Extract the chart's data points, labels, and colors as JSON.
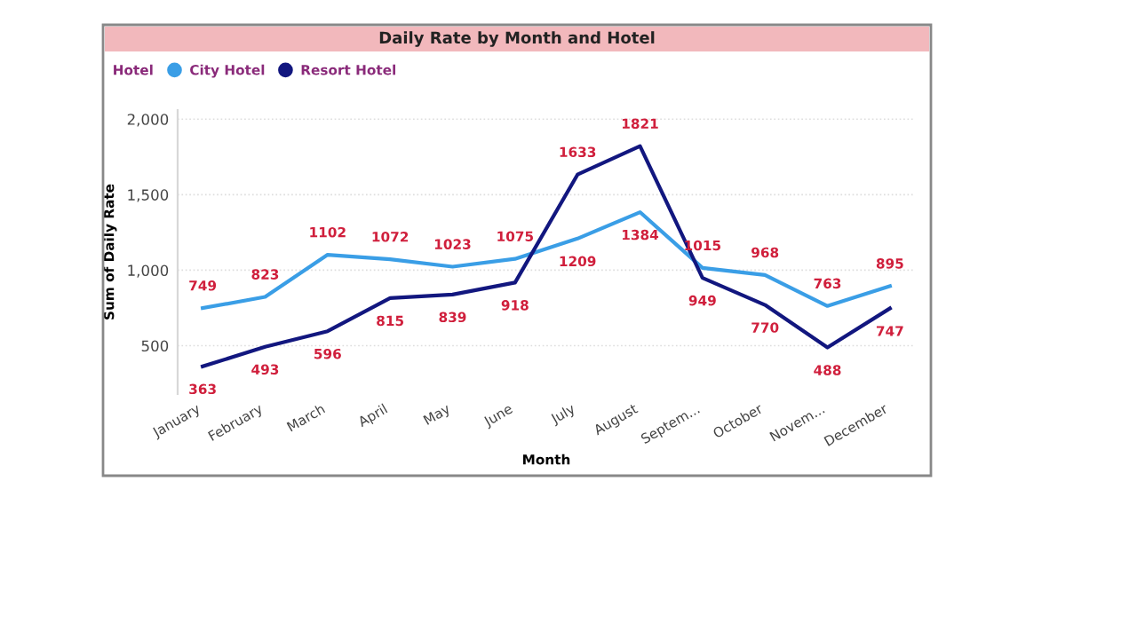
{
  "chart_data": {
    "type": "line",
    "title": "Daily Rate by Month and Hotel",
    "xlabel": "Month",
    "ylabel": "Sum of Daily Rate",
    "legend_title": "Hotel",
    "categories": [
      "January",
      "February",
      "March",
      "April",
      "May",
      "June",
      "July",
      "August",
      "Septem...",
      "October",
      "Novem...",
      "December"
    ],
    "series": [
      {
        "name": "City Hotel",
        "color": "#3a9ee6",
        "values": [
          749,
          823,
          1102,
          1072,
          1023,
          1075,
          1209,
          1384,
          1015,
          968,
          763,
          895
        ]
      },
      {
        "name": "Resort Hotel",
        "color": "#12177f",
        "values": [
          363,
          493,
          596,
          815,
          839,
          918,
          1633,
          1821,
          949,
          770,
          488,
          747
        ]
      }
    ],
    "ylim": [
      180,
      2060
    ],
    "yticks": [
      {
        "value": 500,
        "label": "500"
      },
      {
        "value": 1000,
        "label": "1,000"
      },
      {
        "value": 1500,
        "label": "1,500"
      },
      {
        "value": 2000,
        "label": "2,000"
      }
    ],
    "grid": "y",
    "legend": "top left",
    "marker": "none",
    "line_style": "solid",
    "data_labels": true
  }
}
